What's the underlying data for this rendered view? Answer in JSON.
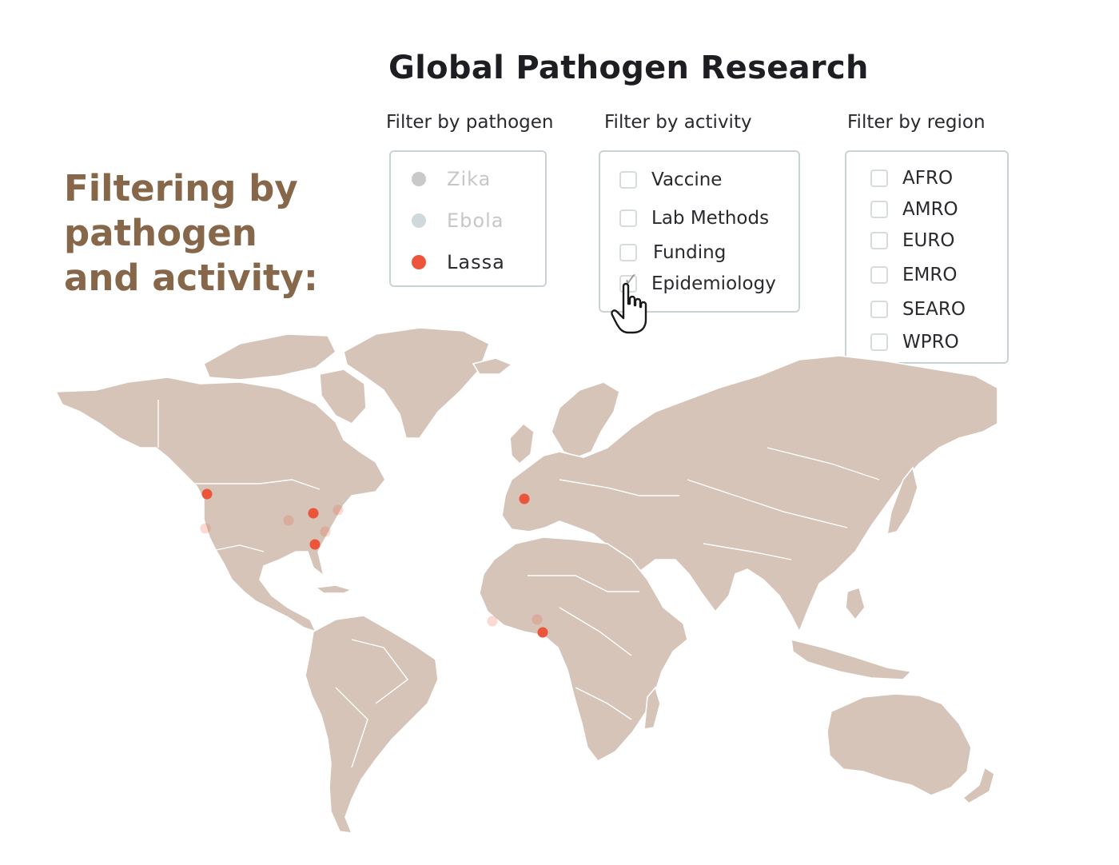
{
  "title": "Global Pathogen Research",
  "annotation": "Filtering by pathogen and activity:",
  "filters": {
    "pathogen": {
      "label": "Filter by pathogen",
      "items": [
        {
          "label": "Zika",
          "color": "#c9c9cc",
          "text_color": "#c7c7ca"
        },
        {
          "label": "Ebola",
          "color": "#cfd8da",
          "text_color": "#c7c7ca"
        },
        {
          "label": "Lassa",
          "color": "#ec5539",
          "text_color": "#2a2a2e"
        }
      ]
    },
    "activity": {
      "label": "Filter by activity",
      "items": [
        {
          "label": "Vaccine",
          "checked": false
        },
        {
          "label": "Lab Methods",
          "checked": false
        },
        {
          "label": "Funding",
          "checked": false
        },
        {
          "label": "Epidemiology",
          "checked": true
        }
      ]
    },
    "region": {
      "label": "Filter by region",
      "items": [
        {
          "label": "AFRO",
          "checked": false
        },
        {
          "label": "AMRO",
          "checked": false
        },
        {
          "label": "EURO",
          "checked": false
        },
        {
          "label": "EMRO",
          "checked": false
        },
        {
          "label": "SEARO",
          "checked": false
        },
        {
          "label": "WPRO",
          "checked": false
        }
      ]
    }
  },
  "map": {
    "land_color": "#d5c4b7",
    "marker_color": "#ec5539",
    "markers": [
      {
        "place": "Seattle",
        "active": true
      },
      {
        "place": "San Francisco",
        "active": false
      },
      {
        "place": "Chicago",
        "active": true
      },
      {
        "place": "Kansas",
        "active": false
      },
      {
        "place": "New York",
        "active": false
      },
      {
        "place": "Washington DC",
        "active": false
      },
      {
        "place": "Atlanta",
        "active": true
      },
      {
        "place": "Paris",
        "active": true
      },
      {
        "place": "Sierra Leone",
        "active": false
      },
      {
        "place": "Nigeria North",
        "active": false
      },
      {
        "place": "Nigeria South",
        "active": true
      }
    ]
  }
}
